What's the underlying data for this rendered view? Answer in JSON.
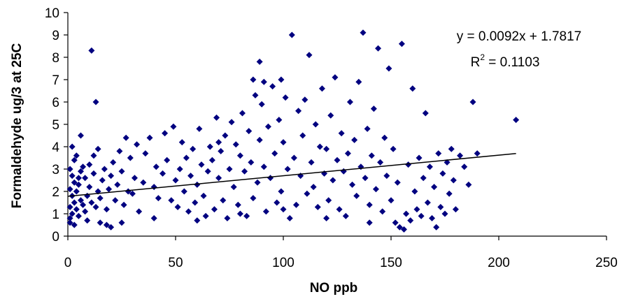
{
  "chart_data": {
    "type": "scatter",
    "title": "",
    "xlabel": "NO ppb",
    "ylabel": "Formaldehyde ug/3 at 25C",
    "xlim": [
      0,
      250
    ],
    "ylim": [
      0,
      10
    ],
    "xticks": [
      0,
      50,
      100,
      150,
      200,
      250
    ],
    "yticks": [
      0,
      1,
      2,
      3,
      4,
      5,
      6,
      7,
      8,
      9,
      10
    ],
    "grid": false,
    "legend": "none",
    "marker": "diamond",
    "marker_color": "#000080",
    "trendline": {
      "type": "linear",
      "slope": 0.0092,
      "intercept": 1.7817,
      "x_range": [
        0,
        208
      ],
      "color": "#000000"
    },
    "annotations": {
      "equation_prefix": "y = 0.0092x + 1.7817",
      "r2_prefix": "R",
      "r2_sup": "2",
      "r2_suffix": " = 0.1103"
    },
    "series": [
      {
        "points": [
          [
            1,
            0.8
          ],
          [
            2,
            1.0
          ],
          [
            1,
            1.3
          ],
          [
            3,
            1.5
          ],
          [
            2,
            1.8
          ],
          [
            1,
            2.1
          ],
          [
            3,
            2.4
          ],
          [
            2,
            2.7
          ],
          [
            1,
            3.0
          ],
          [
            4,
            1.2
          ],
          [
            5,
            0.9
          ],
          [
            6,
            1.6
          ],
          [
            4,
            2.0
          ],
          [
            5,
            2.3
          ],
          [
            7,
            1.4
          ],
          [
            6,
            2.9
          ],
          [
            8,
            1.1
          ],
          [
            3,
            3.4
          ],
          [
            2,
            4.0
          ],
          [
            4,
            3.6
          ],
          [
            9,
            1.8
          ],
          [
            10,
            2.2
          ],
          [
            8,
            2.6
          ],
          [
            11,
            1.5
          ],
          [
            12,
            2.8
          ],
          [
            10,
            3.2
          ],
          [
            9,
            0.7
          ],
          [
            13,
            1.3
          ],
          [
            14,
            2.0
          ],
          [
            12,
            3.6
          ],
          [
            6,
            4.5
          ],
          [
            15,
            1.7
          ],
          [
            16,
            2.5
          ],
          [
            17,
            3.0
          ],
          [
            18,
            1.2
          ],
          [
            19,
            2.1
          ],
          [
            20,
            2.7
          ],
          [
            21,
            3.3
          ],
          [
            15,
            0.6
          ],
          [
            22,
            1.6
          ],
          [
            23,
            2.3
          ],
          [
            24,
            3.8
          ],
          [
            25,
            2.9
          ],
          [
            26,
            1.4
          ],
          [
            27,
            4.4
          ],
          [
            28,
            2.0
          ],
          [
            29,
            3.5
          ],
          [
            30,
            1.9
          ],
          [
            31,
            2.6
          ],
          [
            32,
            4.1
          ],
          [
            11,
            8.3
          ],
          [
            13,
            6.0
          ],
          [
            18,
            0.5
          ],
          [
            20,
            0.4
          ],
          [
            25,
            0.6
          ],
          [
            14,
            3.9
          ],
          [
            7,
            3.1
          ],
          [
            3,
            0.5
          ],
          [
            1,
            0.6
          ],
          [
            5,
            2.6
          ],
          [
            33,
            1.1
          ],
          [
            35,
            2.4
          ],
          [
            36,
            3.7
          ],
          [
            38,
            4.4
          ],
          [
            40,
            2.2
          ],
          [
            41,
            3.1
          ],
          [
            42,
            1.7
          ],
          [
            44,
            2.8
          ],
          [
            45,
            4.6
          ],
          [
            46,
            3.4
          ],
          [
            48,
            1.6
          ],
          [
            49,
            4.9
          ],
          [
            50,
            2.5
          ],
          [
            51,
            1.3
          ],
          [
            52,
            3.0
          ],
          [
            53,
            4.2
          ],
          [
            54,
            2.0
          ],
          [
            55,
            3.5
          ],
          [
            56,
            1.1
          ],
          [
            57,
            2.7
          ],
          [
            58,
            3.9
          ],
          [
            59,
            1.5
          ],
          [
            60,
            2.3
          ],
          [
            61,
            4.8
          ],
          [
            62,
            3.2
          ],
          [
            63,
            1.8
          ],
          [
            64,
            0.9
          ],
          [
            65,
            2.9
          ],
          [
            66,
            4.0
          ],
          [
            67,
            3.4
          ],
          [
            68,
            1.2
          ],
          [
            69,
            5.3
          ],
          [
            70,
            2.6
          ],
          [
            71,
            3.8
          ],
          [
            72,
            1.6
          ],
          [
            73,
            4.5
          ],
          [
            74,
            0.8
          ],
          [
            75,
            3.0
          ],
          [
            76,
            5.1
          ],
          [
            77,
            2.2
          ],
          [
            78,
            4.1
          ],
          [
            79,
            1.4
          ],
          [
            80,
            3.6
          ],
          [
            81,
            5.5
          ],
          [
            82,
            2.9
          ],
          [
            83,
            0.9
          ],
          [
            84,
            4.7
          ],
          [
            85,
            3.3
          ],
          [
            86,
            1.7
          ],
          [
            87,
            6.3
          ],
          [
            88,
            2.4
          ],
          [
            89,
            4.3
          ],
          [
            90,
            5.9
          ],
          [
            91,
            3.1
          ],
          [
            92,
            1.1
          ],
          [
            93,
            4.9
          ],
          [
            94,
            2.6
          ],
          [
            95,
            6.7
          ],
          [
            96,
            3.7
          ],
          [
            97,
            1.5
          ],
          [
            98,
            5.2
          ],
          [
            99,
            2.0
          ],
          [
            100,
            4.2
          ],
          [
            101,
            6.2
          ],
          [
            102,
            3.0
          ],
          [
            103,
            0.8
          ],
          [
            89,
            7.8
          ],
          [
            91,
            6.9
          ],
          [
            86,
            7.0
          ],
          [
            99,
            7.0
          ],
          [
            104,
            9.0
          ],
          [
            105,
            3.5
          ],
          [
            106,
            1.4
          ],
          [
            107,
            5.6
          ],
          [
            108,
            2.7
          ],
          [
            109,
            4.5
          ],
          [
            110,
            6.1
          ],
          [
            111,
            1.9
          ],
          [
            112,
            8.1
          ],
          [
            113,
            3.3
          ],
          [
            114,
            2.2
          ],
          [
            115,
            5.0
          ],
          [
            116,
            1.3
          ],
          [
            117,
            4.0
          ],
          [
            118,
            6.6
          ],
          [
            119,
            2.8
          ],
          [
            120,
            3.9
          ],
          [
            121,
            1.6
          ],
          [
            122,
            5.4
          ],
          [
            123,
            2.5
          ],
          [
            124,
            7.1
          ],
          [
            125,
            3.4
          ],
          [
            126,
            1.2
          ],
          [
            127,
            4.6
          ],
          [
            128,
            2.9
          ],
          [
            129,
            0.9
          ],
          [
            130,
            3.7
          ],
          [
            131,
            6.0
          ],
          [
            132,
            2.3
          ],
          [
            133,
            4.3
          ],
          [
            134,
            1.8
          ],
          [
            135,
            6.9
          ],
          [
            136,
            3.1
          ],
          [
            137,
            9.1
          ],
          [
            138,
            2.6
          ],
          [
            139,
            4.8
          ],
          [
            140,
            1.4
          ],
          [
            141,
            3.6
          ],
          [
            142,
            5.7
          ],
          [
            143,
            2.1
          ],
          [
            144,
            8.4
          ],
          [
            145,
            3.3
          ],
          [
            146,
            1.1
          ],
          [
            147,
            4.4
          ],
          [
            148,
            2.7
          ],
          [
            149,
            7.5
          ],
          [
            150,
            1.6
          ],
          [
            151,
            3.9
          ],
          [
            152,
            0.6
          ],
          [
            153,
            2.4
          ],
          [
            154,
            0.4
          ],
          [
            155,
            8.6
          ],
          [
            156,
            0.3
          ],
          [
            157,
            1.0
          ],
          [
            158,
            3.2
          ],
          [
            159,
            0.7
          ],
          [
            160,
            6.6
          ],
          [
            161,
            2.0
          ],
          [
            162,
            1.2
          ],
          [
            163,
            3.5
          ],
          [
            164,
            0.9
          ],
          [
            165,
            2.6
          ],
          [
            166,
            5.5
          ],
          [
            167,
            1.5
          ],
          [
            168,
            3.1
          ],
          [
            169,
            0.8
          ],
          [
            170,
            2.2
          ],
          [
            171,
            0.4
          ],
          [
            172,
            3.7
          ],
          [
            173,
            1.3
          ],
          [
            174,
            2.8
          ],
          [
            175,
            1.0
          ],
          [
            176,
            3.3
          ],
          [
            177,
            1.9
          ],
          [
            178,
            3.9
          ],
          [
            179,
            2.5
          ],
          [
            180,
            1.2
          ],
          [
            182,
            3.6
          ],
          [
            184,
            3.1
          ],
          [
            186,
            2.3
          ],
          [
            188,
            6.0
          ],
          [
            190,
            3.7
          ],
          [
            208,
            5.2
          ],
          [
            40,
            0.8
          ],
          [
            60,
            0.7
          ],
          [
            80,
            1.0
          ],
          [
            120,
            0.8
          ],
          [
            140,
            0.6
          ],
          [
            100,
            1.2
          ],
          [
            70,
            4.2
          ]
        ]
      }
    ]
  }
}
